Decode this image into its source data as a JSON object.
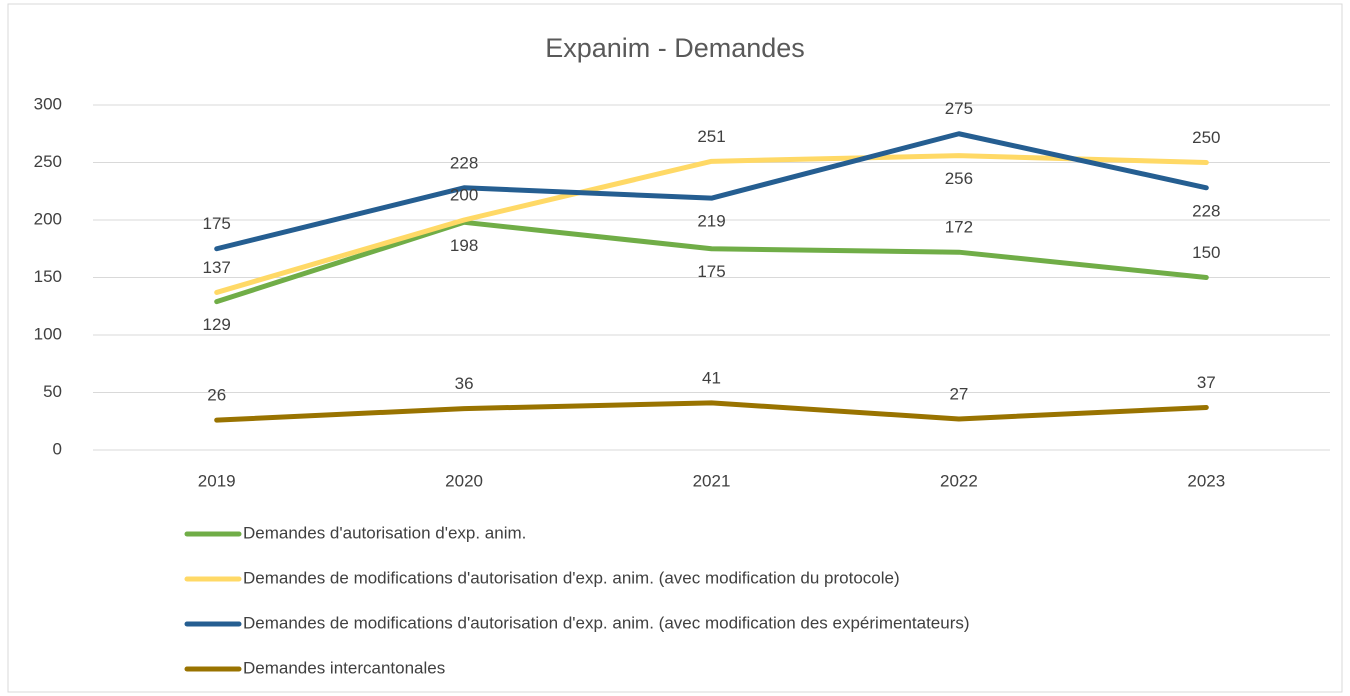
{
  "chart_data": {
    "type": "line",
    "title": "Expanim - Demandes",
    "categories": [
      "2019",
      "2020",
      "2021",
      "2022",
      "2023"
    ],
    "series": [
      {
        "name": "Demandes d'autorisation d'exp. anim.",
        "color": "#70ad47",
        "values": [
          129,
          198,
          175,
          172,
          150
        ]
      },
      {
        "name": "Demandes de modifications d'autorisation d'exp. anim. (avec modification du protocole)",
        "color": "#ffd966",
        "values": [
          137,
          200,
          251,
          256,
          250
        ]
      },
      {
        "name": "Demandes de modifications d'autorisation d'exp. anim. (avec modification des expérimentateurs)",
        "color": "#255e91",
        "values": [
          175,
          228,
          219,
          275,
          228
        ]
      },
      {
        "name": "Demandes intercantonales",
        "color": "#997300",
        "values": [
          26,
          36,
          41,
          27,
          37
        ]
      }
    ],
    "ylim": [
      0,
      300
    ],
    "yticks": [
      0,
      50,
      100,
      150,
      200,
      250,
      300
    ],
    "grid": true,
    "legend": "bottom"
  }
}
